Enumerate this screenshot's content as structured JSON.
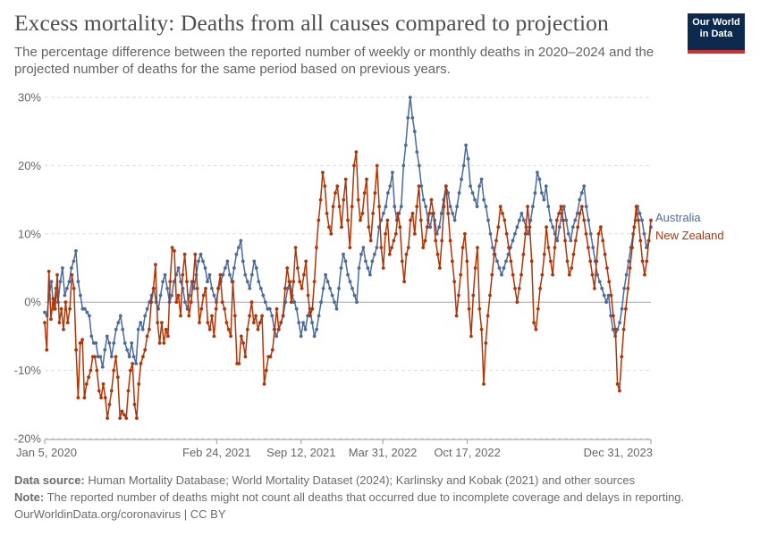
{
  "header": {
    "title": "Excess mortality: Deaths from all causes compared to projection",
    "subtitle": "The percentage difference between the reported number of weekly or monthly deaths in 2020–2024 and the projected number of deaths for the same period based on previous years."
  },
  "logo": {
    "line1": "Our World",
    "line2": "in Data"
  },
  "footer": {
    "source_label": "Data source:",
    "source_text": "Human Mortality Database; World Mortality Dataset (2024); Karlinsky and Kobak (2021) and other sources",
    "note_label": "Note:",
    "note_text": "The reported number of deaths might not count all deaths that occurred due to incomplete coverage and delays in reporting.",
    "url": "OurWorldinData.org/coronavirus | CC BY"
  },
  "colors": {
    "australia": "#4c6a9c",
    "new_zealand": "#b13507",
    "grid": "#dddddd",
    "zero": "#a1a1a1"
  },
  "chart_data": {
    "type": "line",
    "title": "Excess mortality: Deaths from all causes compared to projection",
    "ylabel": "",
    "ylim": [
      -20,
      30
    ],
    "yticks": [
      -20,
      -10,
      0,
      10,
      20,
      30
    ],
    "ytick_labels": [
      "-20%",
      "-10%",
      "0%",
      "10%",
      "20%",
      "30%"
    ],
    "xlim": [
      "2020-01-05",
      "2023-12-31"
    ],
    "xtick_labels": [
      "Jan 5, 2020",
      "Feb 24, 2021",
      "Sep 12, 2021",
      "Mar 31, 2022",
      "Oct 17, 2022",
      "Dec 31, 2023"
    ],
    "x_unit": "week index (0 = Jan 5, 2020)",
    "xticks_week": [
      0,
      59,
      88,
      116,
      145,
      208
    ],
    "legend": "right-end labels",
    "series": [
      {
        "name": "Australia",
        "color": "#4c6a9c",
        "values": [
          -1.5,
          -2,
          1,
          3,
          -1,
          2,
          0,
          3,
          5,
          1,
          2,
          3,
          5,
          6,
          7.5,
          3,
          1,
          -1,
          -1,
          -1.5,
          -2,
          -5,
          -6,
          -6,
          -8,
          -8,
          -9.5,
          -7,
          -5,
          -6,
          -8,
          -6,
          -4,
          -3,
          -2,
          -4,
          -6,
          -7,
          -8,
          -6,
          -8,
          -9,
          -4,
          -3,
          -4,
          -2,
          -1,
          0,
          1,
          2,
          0,
          -1,
          1,
          3,
          4,
          2,
          0,
          1,
          3,
          4,
          5,
          3,
          2,
          0,
          -1,
          1,
          3,
          2,
          4,
          6,
          7,
          6,
          5,
          3,
          4,
          2,
          1,
          0,
          2,
          3,
          4,
          5,
          6,
          4,
          3,
          5,
          7,
          8,
          9,
          6,
          4,
          3,
          2,
          4,
          6,
          5,
          3,
          2,
          1,
          0,
          -1,
          -1,
          -2,
          -4,
          -5,
          -4,
          -3,
          -2,
          0,
          2,
          3,
          1,
          0,
          -1,
          -3,
          -5,
          -3,
          -4,
          -2,
          -1,
          -3,
          -5,
          -4,
          -2,
          0,
          2,
          4,
          3,
          2,
          1,
          0,
          -1,
          2,
          5,
          7,
          6,
          4,
          3,
          2,
          1,
          0,
          5,
          7,
          8,
          6,
          5,
          4,
          6,
          7,
          8,
          11,
          12,
          13,
          14,
          16,
          17,
          19,
          14,
          12,
          13,
          14,
          20,
          23,
          27,
          30,
          27,
          25,
          22,
          20,
          17,
          15,
          14,
          12,
          11,
          13,
          12,
          10,
          11,
          13,
          15,
          17,
          16,
          14,
          13,
          12,
          14,
          16,
          18,
          20,
          23,
          21,
          17,
          16,
          15,
          14,
          17,
          18,
          15,
          14,
          12,
          10,
          8,
          7,
          6,
          5,
          4,
          5,
          6,
          7,
          8,
          9,
          10,
          11,
          12,
          13,
          12,
          11,
          10,
          12,
          14,
          16,
          19,
          18,
          16,
          15,
          17,
          14,
          12,
          11,
          10,
          9,
          11,
          13,
          14,
          12,
          10,
          9,
          11,
          12,
          13,
          15,
          16,
          17,
          14,
          12,
          10,
          8,
          6,
          4,
          3,
          2,
          1,
          0,
          1,
          -2,
          -4,
          -5,
          -4,
          -3,
          -1,
          2,
          4,
          6,
          8,
          10,
          12,
          14,
          13,
          12,
          10,
          8,
          9,
          11
        ],
        "label": "Australia"
      },
      {
        "name": "New Zealand",
        "color": "#b13507",
        "values": [
          -3,
          -7,
          4.5,
          -2.5,
          0.5,
          -1,
          4,
          -3,
          -1,
          -4,
          0,
          -3,
          -1,
          4,
          2,
          -7,
          -14,
          -6,
          -5.5,
          -14,
          -12,
          -11,
          -10,
          -8,
          -8,
          -10,
          -13,
          -14,
          -12,
          -14,
          -17,
          -15,
          -13,
          -10,
          -8,
          -11,
          -17,
          -16,
          -16.5,
          -17,
          -13,
          -10,
          -9,
          -15,
          -17,
          -12,
          -9,
          -8,
          -7,
          -5,
          -4,
          0,
          2,
          5.5,
          -3,
          -6,
          -3,
          -6,
          -4,
          -5,
          3,
          8,
          7.5,
          0,
          1,
          -2,
          4,
          7,
          3,
          -2,
          0,
          3,
          7,
          2,
          -3,
          -1,
          1,
          2,
          -3,
          -4,
          -2,
          -5,
          -1,
          2,
          4,
          0,
          -1,
          -3,
          -4,
          -5,
          3,
          -2,
          -9,
          -9,
          -5,
          -6,
          -8,
          -4,
          -2,
          0,
          -3,
          -2,
          -4,
          -3,
          -2,
          -12,
          -10,
          -8,
          -8,
          -7,
          -4,
          -1,
          -4,
          -3,
          -2,
          2,
          5,
          3,
          0,
          3,
          8,
          5,
          3,
          2,
          4,
          6,
          1,
          -2,
          -1,
          3,
          8,
          12,
          15,
          19,
          17,
          13,
          11,
          10,
          14,
          16,
          17,
          14,
          11,
          15,
          18,
          12,
          8,
          14,
          20,
          22,
          15,
          12,
          13,
          16,
          18,
          11,
          9,
          13,
          16,
          20,
          14,
          8,
          5,
          10,
          12,
          7,
          8,
          9,
          10,
          13,
          11,
          6,
          3,
          7,
          8,
          12,
          13,
          10,
          14,
          17,
          12,
          8,
          9,
          11,
          13,
          15,
          13,
          9,
          7,
          5,
          9,
          14,
          17,
          13,
          9,
          6,
          3,
          -2,
          1,
          4,
          8,
          10,
          6,
          -1,
          -5,
          1,
          5,
          8,
          -1,
          -4,
          -12,
          -6,
          -2,
          1,
          4,
          7,
          9,
          11,
          14,
          13,
          12,
          10,
          8,
          6,
          4,
          2,
          0,
          2,
          4,
          7,
          10,
          14,
          11,
          6,
          -3,
          -4,
          -1,
          2,
          4,
          7,
          11,
          8,
          6,
          4,
          8,
          12,
          13,
          14,
          12,
          9,
          6,
          4,
          5,
          7,
          9,
          11,
          13,
          14,
          12,
          10,
          8,
          6,
          4,
          2,
          6,
          10,
          11,
          9,
          7,
          5,
          3,
          1,
          -2,
          -4,
          -12,
          -13,
          -8,
          -4,
          -1,
          2,
          5,
          8,
          11,
          14,
          12,
          9,
          6,
          4,
          6,
          9,
          12
        ]
      }
    ]
  }
}
